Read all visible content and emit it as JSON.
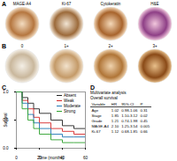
{
  "panel_labels": [
    "A",
    "B",
    "C",
    "D"
  ],
  "image_rows": [
    {
      "labels": [
        "MAGE-A4",
        "Ki-67",
        "Cytokeratin",
        "H&E"
      ]
    },
    {
      "labels": [
        "0",
        "1+",
        "2+",
        "3+"
      ]
    }
  ],
  "chart_data": {
    "type": "line",
    "x_label": "Time (months)",
    "y_label": "Survival",
    "xlim": [
      0,
      60
    ],
    "xticks": [
      0,
      20,
      40,
      60
    ],
    "ylim": [
      0,
      1
    ],
    "yticks": [
      {
        "value": 0,
        "label": "0.0"
      },
      {
        "value": 0.5,
        "label": "0.5"
      },
      {
        "value": 1,
        "label": "1.0"
      }
    ],
    "line_style": "step",
    "legend": "top-right",
    "series": [
      {
        "name": "Absent",
        "color": "#222222",
        "x": [
          0,
          5,
          10,
          15,
          20,
          30,
          40,
          50,
          60
        ],
        "values": [
          1,
          0.9,
          0.8,
          0.7,
          0.62,
          0.5,
          0.4,
          0.35,
          0.35
        ]
      },
      {
        "name": "Weak",
        "color": "#d62728",
        "x": [
          0,
          5,
          10,
          15,
          20,
          30,
          40,
          50,
          60
        ],
        "values": [
          1,
          0.85,
          0.7,
          0.55,
          0.45,
          0.35,
          0.3,
          0.25,
          0.25
        ]
      },
      {
        "name": "Moderate",
        "color": "#1f77b4",
        "x": [
          0,
          5,
          10,
          15,
          20,
          30,
          40,
          50,
          60
        ],
        "values": [
          1,
          0.8,
          0.6,
          0.45,
          0.35,
          0.25,
          0.2,
          0.2,
          0.2
        ]
      },
      {
        "name": "Strong",
        "color": "#2ca02c",
        "x": [
          0,
          5,
          10,
          15,
          20,
          30,
          40,
          50,
          60
        ],
        "values": [
          1,
          0.7,
          0.5,
          0.35,
          0.25,
          0.15,
          0.1,
          0.1,
          0.1
        ]
      }
    ]
  },
  "table": {
    "title": [
      "Multivariate analysis",
      "Overall survival"
    ],
    "header": [
      "Variable",
      "HR",
      "95% CI",
      "P"
    ],
    "rows": [
      [
        "Age",
        "1.02",
        "0.98-1.06",
        "0.31"
      ],
      [
        "Stage",
        "1.85",
        "1.10-3.12",
        "0.02"
      ],
      [
        "Grade",
        "1.21",
        "0.74-1.98",
        "0.45"
      ],
      [
        "MAGE-A4",
        "2.10",
        "1.25-3.54",
        "0.005"
      ],
      [
        "Ki-67",
        "1.12",
        "0.68-1.85",
        "0.66"
      ]
    ]
  }
}
